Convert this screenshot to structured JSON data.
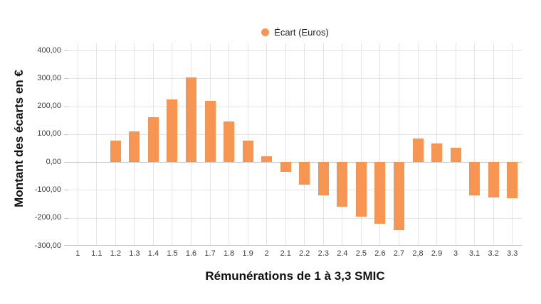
{
  "colors": {
    "bar": "#F79552",
    "grid": "#e4e4e4",
    "axis": "#c6c6c6",
    "tick_text": "#3d3d3d",
    "title_text": "#111111",
    "background": "#ffffff"
  },
  "chart_data": {
    "type": "bar",
    "title": "",
    "series_name": "Écart (Euros)",
    "xlabel": "Rémunérations de 1 à 3,3 SMIC",
    "ylabel": "Montant des écarts en €",
    "categories": [
      "1",
      "1.1",
      "1.2",
      "1.3",
      "1.4",
      "1.5",
      "1.6",
      "1.7",
      "1.8",
      "1.9",
      "2",
      "2.1",
      "2.2",
      "2.3",
      "2.4",
      "2.5",
      "2.6",
      "2.7",
      "2,8",
      "2.9",
      "3",
      "3.1",
      "3.2",
      "3.3"
    ],
    "values": [
      0,
      0,
      78,
      110,
      160,
      226,
      303,
      220,
      146,
      78,
      20,
      -35,
      -80,
      -120,
      -160,
      -195,
      -222,
      -244,
      85,
      68,
      52,
      -118,
      -126,
      -129
    ],
    "y_ticks": [
      {
        "value": 400,
        "label": "400,00"
      },
      {
        "value": 300,
        "label": "300,00"
      },
      {
        "value": 200,
        "label": "200,00"
      },
      {
        "value": 100,
        "label": "100,00"
      },
      {
        "value": 0,
        "label": "0,00"
      },
      {
        "value": -100,
        "label": "-100,00"
      },
      {
        "value": -200,
        "label": "-200,00"
      },
      {
        "value": -300,
        "label": "-300,00"
      }
    ],
    "ylim": [
      -300,
      426
    ],
    "grid": true,
    "legend_position": "top-center",
    "bar_color": "#F79552"
  }
}
